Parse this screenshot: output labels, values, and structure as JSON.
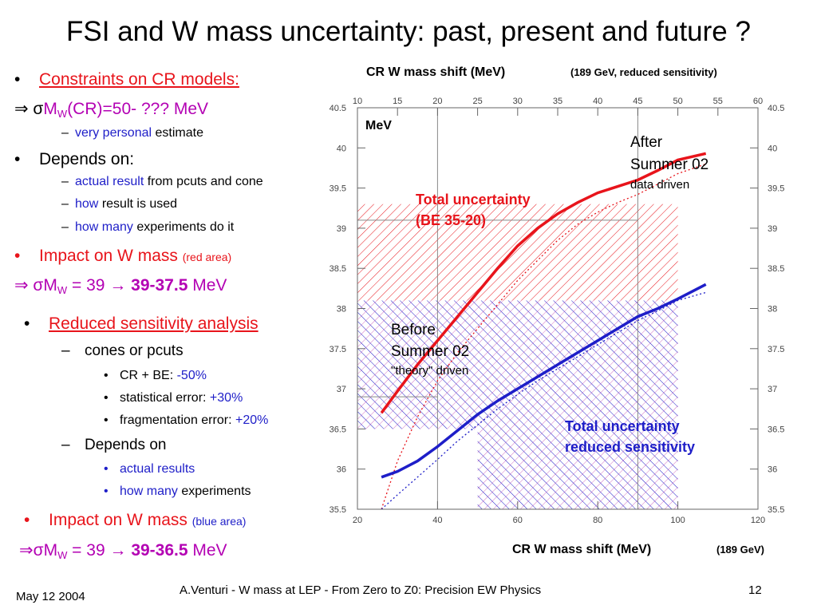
{
  "slide": {
    "title": "FSI and W mass uncertainty: past, present and future ?",
    "left_text": {
      "b1": "Constraints on CR models:",
      "b1_arrow": "⇒ σ",
      "b1_m": "M",
      "b1_sub": "W",
      "b1_rest": "(CR)=50- ??? MeV",
      "b1_dash_a": "very personal",
      "b1_dash_b": "estimate",
      "b2": "Depends on:",
      "b2_l1a": "actual result",
      "b2_l1b": "from pcuts and cone",
      "b2_l2a": "how",
      "b2_l2b": "result is used",
      "b2_l3a": "how many",
      "b2_l3b": "experiments do it",
      "b3": "Impact on W mass",
      "b3_small": "(red area)",
      "b3_arrow": "⇒ σ",
      "b3_m": "M",
      "b3_sub": "W",
      "b3_eq": " = 39 → ",
      "b3_range": "39-37.5",
      "b3_unit": " MeV",
      "b4": "Reduced sensitivity analysis",
      "b4_l1": "cones or pcuts",
      "b4_s1a": "CR + BE:",
      "b4_s1b": "-50%",
      "b4_s2a": "statistical error:",
      "b4_s2b": "+30%",
      "b4_s3a": "fragmentation error:",
      "b4_s3b": "+20%",
      "b4_l2": "Depends on",
      "b4_s4": "actual results",
      "b4_s5a": "how many",
      "b4_s5b": "experiments",
      "b5": "Impact on W mass",
      "b5_small": "(blue area)",
      "b5_arrow": "⇒σ",
      "b5_m": "M",
      "b5_sub": "W",
      "b5_eq": " = 39 → ",
      "b5_range": "39-36.5",
      "b5_unit": " MeV"
    },
    "footer": {
      "date": "May 12 2004",
      "center": "A.Venturi - W mass at LEP - From Zero to Z0: Precision EW Physics",
      "page": "12"
    }
  },
  "chart_data": {
    "type": "line",
    "title_main": "CR W mass shift (MeV)",
    "title_small": "(189 GeV, reduced sensitivity)",
    "xlabel_main": "CR W mass shift (MeV)",
    "xlabel_small": "(189 GeV)",
    "unit_label": "MeV",
    "xlim": [
      20,
      120
    ],
    "xticks": [
      20,
      40,
      60,
      80,
      100,
      120
    ],
    "top_xlim": [
      10,
      60
    ],
    "top_xticks": [
      10,
      15,
      20,
      25,
      30,
      35,
      40,
      45,
      50,
      55,
      60
    ],
    "ylim": [
      35.5,
      40.5
    ],
    "yticks": [
      "35.5",
      "36",
      "36.5",
      "37",
      "37.5",
      "38",
      "38.5",
      "39",
      "39.5",
      "40",
      "40.5"
    ],
    "series": [
      {
        "name": "Total uncertainty (BE 35-20)",
        "style": "solid",
        "color": "#e8141b",
        "x": [
          26,
          30,
          35,
          40,
          45,
          50,
          55,
          60,
          65,
          70,
          75,
          80,
          85,
          90,
          95,
          100,
          107
        ],
        "y": [
          36.7,
          36.97,
          37.3,
          37.6,
          37.9,
          38.2,
          38.5,
          38.78,
          39.0,
          39.18,
          39.32,
          39.44,
          39.52,
          39.6,
          39.72,
          39.85,
          39.93
        ]
      },
      {
        "name": "",
        "style": "dotted",
        "color": "#e8141b",
        "x": [
          26,
          30,
          35,
          40,
          45,
          50,
          55,
          60,
          65,
          70,
          75,
          80,
          85,
          90,
          95,
          100,
          107
        ],
        "y": [
          35.5,
          36.1,
          36.65,
          37.1,
          37.45,
          37.75,
          38.05,
          38.35,
          38.6,
          38.85,
          39.05,
          39.2,
          39.32,
          39.42,
          39.55,
          39.68,
          39.8
        ]
      },
      {
        "name": "Total uncertainty reduced sensitivity",
        "style": "solid",
        "color": "#1e1ec8",
        "x": [
          26,
          30,
          35,
          40,
          45,
          50,
          55,
          60,
          65,
          70,
          75,
          80,
          85,
          90,
          95,
          100,
          107
        ],
        "y": [
          35.9,
          35.97,
          36.1,
          36.28,
          36.48,
          36.68,
          36.85,
          37.0,
          37.15,
          37.3,
          37.45,
          37.6,
          37.75,
          37.9,
          38.0,
          38.12,
          38.3
        ]
      },
      {
        "name": "",
        "style": "dotted",
        "color": "#1e1ec8",
        "x": [
          26,
          30,
          35,
          40,
          45,
          50,
          55,
          60,
          65,
          70,
          75,
          80,
          85,
          90,
          95,
          100,
          107
        ],
        "y": [
          35.5,
          35.68,
          35.9,
          36.12,
          36.35,
          36.55,
          36.75,
          36.93,
          37.1,
          37.25,
          37.4,
          37.55,
          37.7,
          37.85,
          37.97,
          38.1,
          38.2
        ]
      }
    ],
    "reference_lines": [
      {
        "name": "After Summer 02",
        "x": 90,
        "y": 39.1
      },
      {
        "name": "Before Summer 02",
        "x": 40,
        "y": 36.9
      }
    ],
    "areas": [
      {
        "name": "red area",
        "x": [
          20,
          100
        ],
        "y": [
          38.1,
          39.3
        ],
        "color": "#e8141b"
      },
      {
        "name": "blue area low",
        "x": [
          50,
          100
        ],
        "y": [
          35.5,
          38.1
        ],
        "color": "#1e1ec8"
      },
      {
        "name": "blue area left",
        "x": [
          20,
          50
        ],
        "y": [
          36.5,
          38.1
        ],
        "color": "#1e1ec8"
      }
    ],
    "annotations": {
      "after_l1": "After",
      "after_l2": "Summer 02",
      "after_l3": "data driven",
      "before_l1": "Before",
      "before_l2": "Summer 02",
      "before_l3": "\"theory\" driven",
      "red_label_l1": "Total uncertainty",
      "red_label_l2": "(BE 35-20)",
      "blue_label_l1": "Total uncertainty",
      "blue_label_l2": "reduced sensitivity"
    }
  }
}
